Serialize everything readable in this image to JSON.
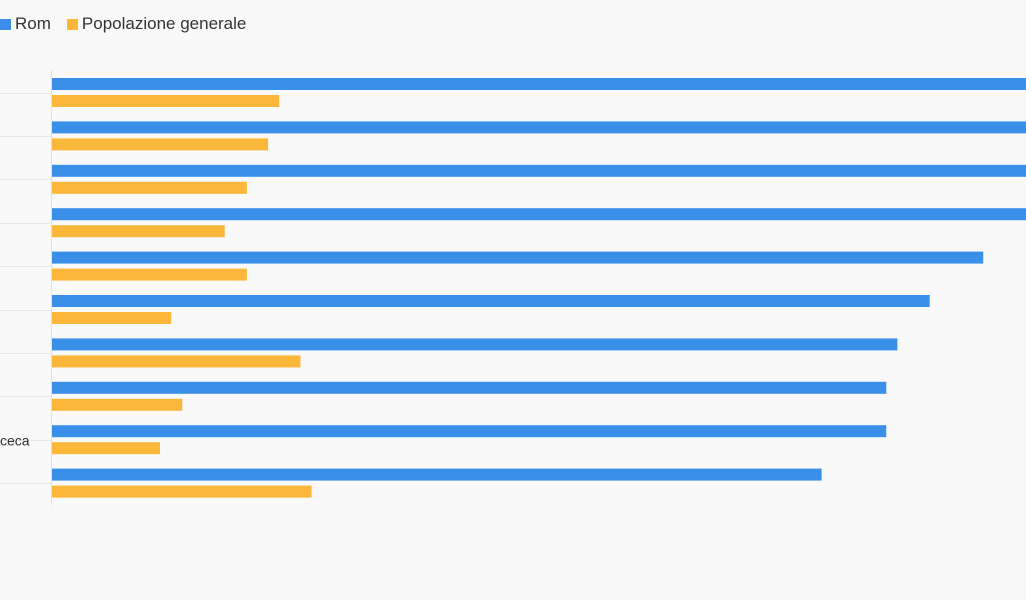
{
  "chart_data": {
    "type": "bar",
    "orientation": "horizontal",
    "title": "",
    "xlabel": "",
    "ylabel": "",
    "legend_position": "top-left",
    "grid": false,
    "xlim": [
      0,
      100
    ],
    "categories": [
      "",
      "",
      "",
      "",
      "",
      "",
      "",
      "",
      "ceca",
      ""
    ],
    "series": [
      {
        "name": "Rom",
        "color": "#3a8fe8",
        "values": [
          100,
          100,
          100,
          100,
          92.2,
          86.9,
          83.7,
          82.6,
          82.6,
          76.2
        ]
      },
      {
        "name": "Popolazione generale",
        "color": "#fbb73a",
        "values": [
          22.5,
          21.4,
          19.3,
          17.1,
          19.3,
          11.8,
          24.6,
          12.9,
          10.7,
          25.7
        ]
      }
    ]
  }
}
